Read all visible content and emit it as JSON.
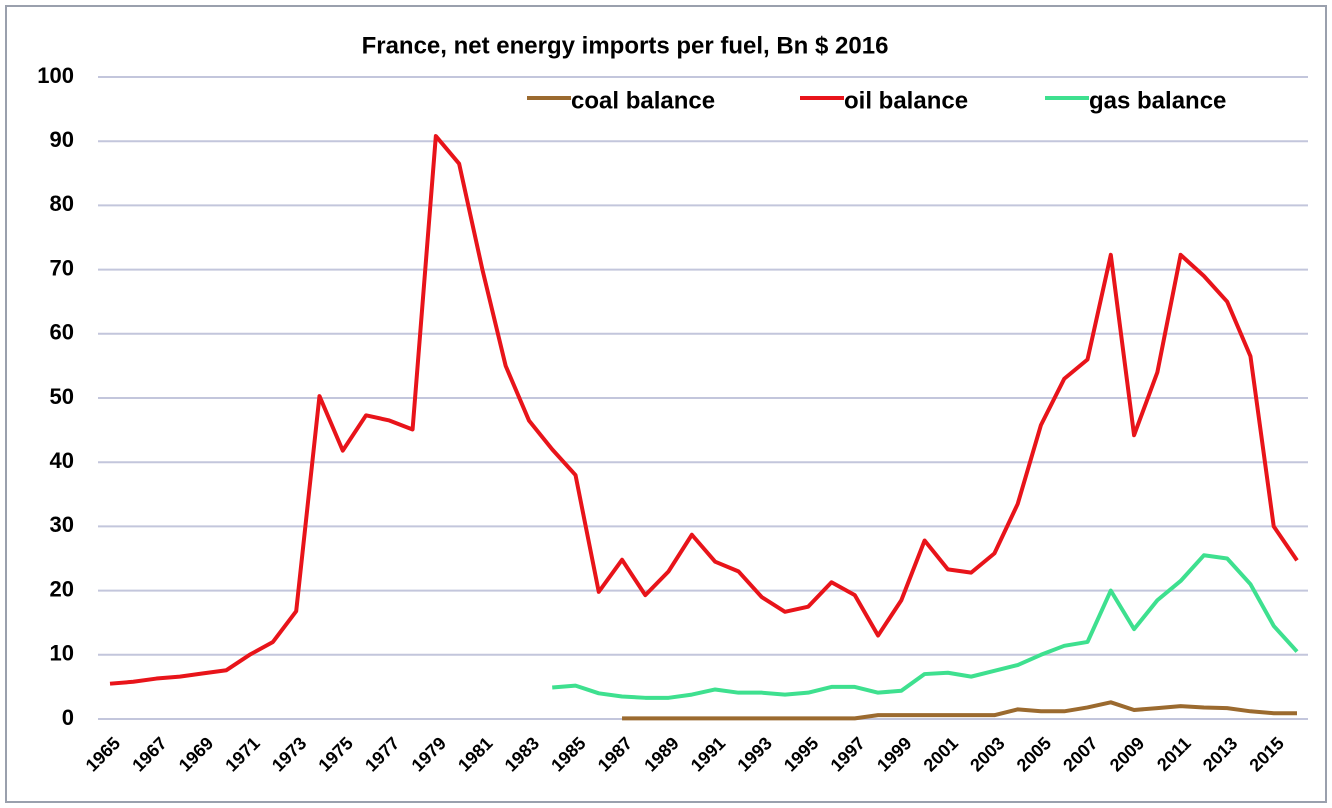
{
  "chart_data": {
    "type": "line",
    "title": "France, net energy imports per fuel, Bn $ 2016",
    "categories": [
      "1965",
      null,
      "1967",
      null,
      "1969",
      null,
      "1971",
      null,
      "1973",
      null,
      "1975",
      null,
      "1977",
      null,
      "1979",
      null,
      "1981",
      null,
      "1983",
      null,
      "1985",
      null,
      "1987",
      null,
      "1989",
      null,
      "1991",
      null,
      "1993",
      null,
      "1995",
      null,
      "1997",
      null,
      "1999",
      null,
      "2001",
      null,
      "2003",
      null,
      "2005",
      null,
      "2007",
      null,
      "2009",
      null,
      "2011",
      null,
      "2013",
      null,
      "2015",
      null
    ],
    "series": [
      {
        "name": "coal balance",
        "color": "#9b6a2f",
        "values": [
          null,
          null,
          null,
          null,
          null,
          null,
          null,
          null,
          null,
          null,
          null,
          null,
          null,
          null,
          null,
          null,
          null,
          null,
          null,
          null,
          null,
          null,
          0.1,
          0.1,
          0.1,
          0.1,
          0.1,
          0.1,
          0.1,
          0.1,
          0.1,
          0.1,
          0.1,
          0.6,
          0.6,
          0.6,
          0.6,
          0.6,
          0.6,
          1.5,
          1.2,
          1.2,
          1.8,
          2.6,
          1.4,
          1.7,
          2,
          1.8,
          1.7,
          1.2,
          0.9,
          0.9
        ]
      },
      {
        "name": "oil balance",
        "color": "#e8141a",
        "values": [
          5.5,
          5.8,
          6.3,
          6.6,
          7.1,
          7.6,
          10,
          12,
          16.8,
          50.3,
          41.8,
          47.3,
          46.5,
          45.1,
          90.8,
          86.5,
          70,
          55,
          46.5,
          42,
          38,
          19.8,
          24.8,
          19.3,
          23,
          28.7,
          24.5,
          23,
          19,
          16.7,
          17.5,
          21.3,
          19.3,
          13,
          18.5,
          27.8,
          23.3,
          22.8,
          25.8,
          33.5,
          45.8,
          53,
          56,
          72.3,
          44.2,
          54,
          72.3,
          69,
          65,
          56.5,
          30,
          24.7
        ]
      },
      {
        "name": "gas balance",
        "color": "#3ee08f",
        "values": [
          null,
          null,
          null,
          null,
          null,
          null,
          null,
          null,
          null,
          null,
          null,
          null,
          null,
          null,
          null,
          null,
          null,
          null,
          null,
          4.9,
          5.2,
          4,
          3.5,
          3.3,
          3.3,
          3.8,
          4.6,
          4.1,
          4.1,
          3.8,
          4.1,
          5,
          5,
          4.1,
          4.4,
          7,
          7.2,
          6.6,
          7.5,
          8.4,
          10,
          11.4,
          12,
          20,
          14,
          18.5,
          21.5,
          25.5,
          25,
          21,
          14.5,
          10.5
        ]
      }
    ],
    "ylim": [
      0,
      100
    ],
    "yticks": [
      0,
      10,
      20,
      30,
      40,
      50,
      60,
      70,
      80,
      90,
      100
    ],
    "grid": true,
    "legend": "top-right"
  }
}
